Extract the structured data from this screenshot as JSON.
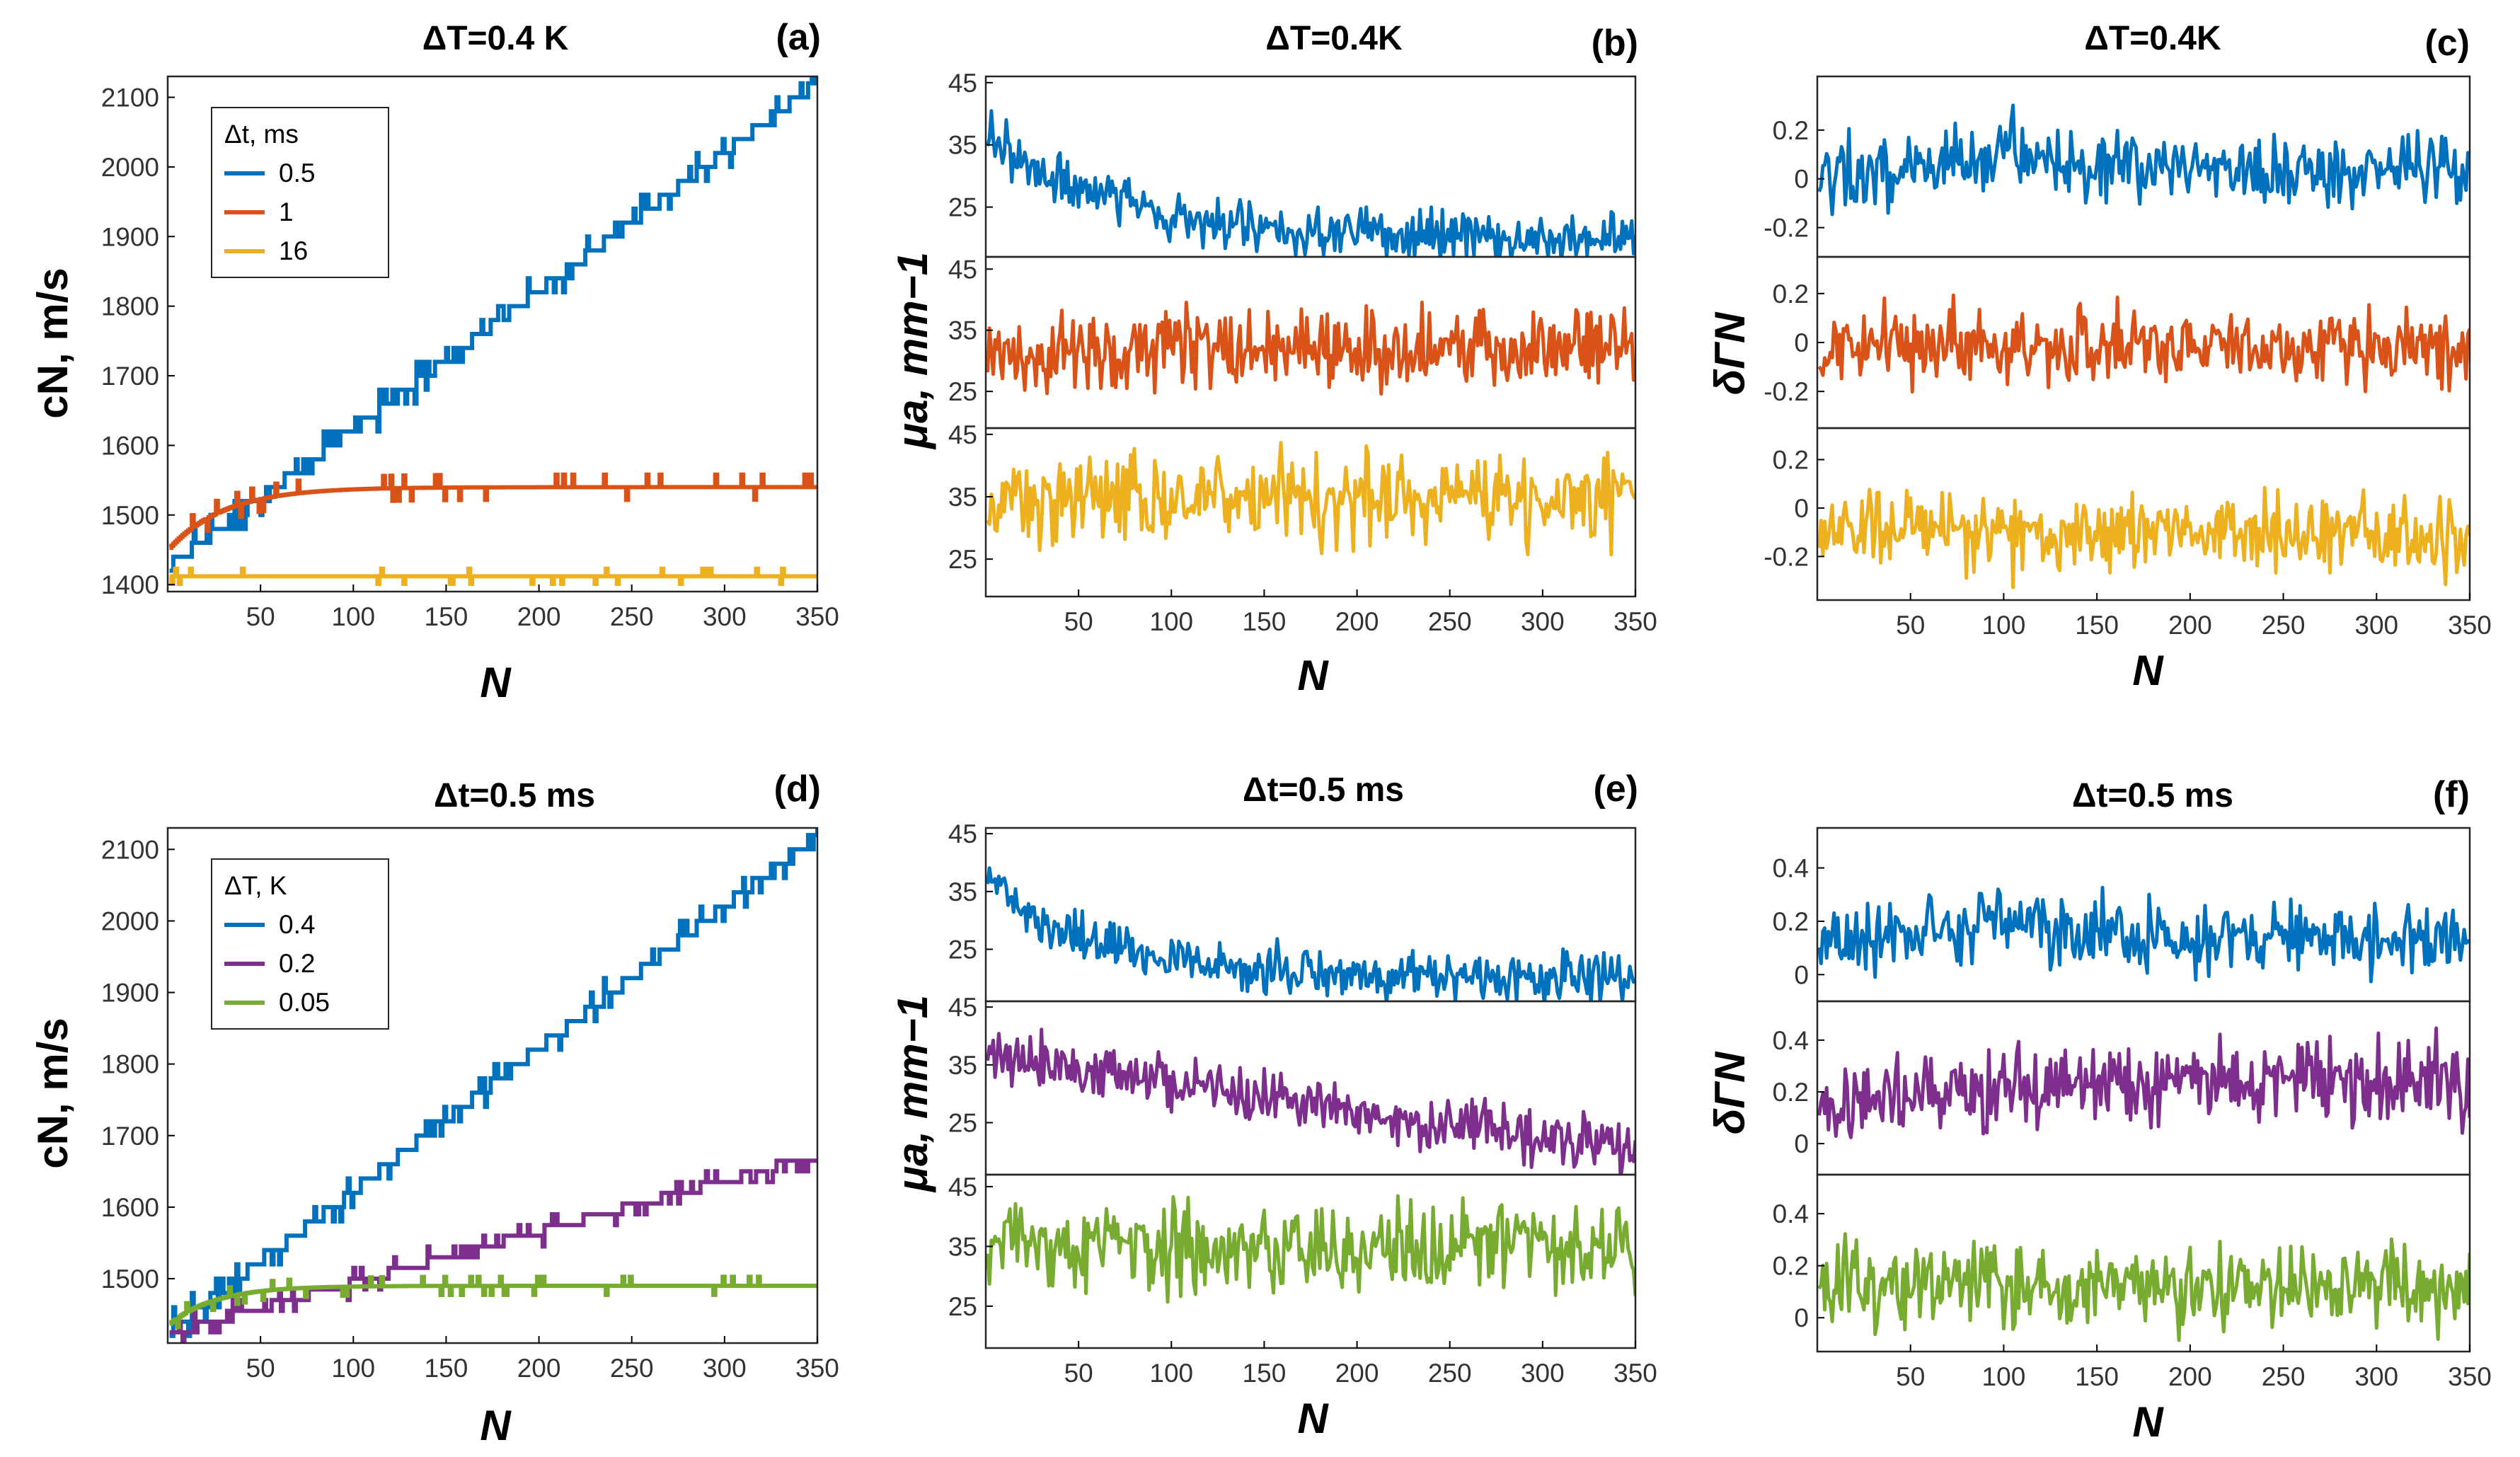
{
  "colors": {
    "blue": "#0072BD",
    "orange": "#D95319",
    "yellow": "#EDB120",
    "purple": "#7E2F8E",
    "green": "#77AC30"
  },
  "chart_data": [
    {
      "id": "a",
      "type": "line",
      "panel_label": "(a)",
      "title": "ΔT=0.4 K",
      "xlabel": "N",
      "ylabel": "cN, m/s",
      "xlim": [
        0,
        350
      ],
      "ylim": [
        1390,
        2130
      ],
      "xticks": [
        50,
        100,
        150,
        200,
        250,
        300,
        350
      ],
      "yticks": [
        1400,
        1500,
        1600,
        1700,
        1800,
        1900,
        2000,
        2100
      ],
      "legend": {
        "title": "Δt, ms",
        "position": "top-left"
      },
      "series": [
        {
          "name": "0.5",
          "color": "#0072BD",
          "shape": "ramp",
          "start": 1435,
          "end": 2130,
          "step": 20,
          "noise": 18
        },
        {
          "name": "1",
          "color": "#D95319",
          "shape": "saturating",
          "start": 1450,
          "end": 1540,
          "tau": 30,
          "noise": 10
        },
        {
          "name": "16",
          "color": "#EDB120",
          "shape": "flat",
          "start": 1412,
          "end": 1412,
          "noise": 6
        }
      ]
    },
    {
      "id": "b",
      "type": "line",
      "panel_label": "(b)",
      "title": "ΔT=0.4K",
      "xlabel": "N",
      "ylabel": "μa, mm−1",
      "xlim": [
        0,
        350
      ],
      "xticks": [
        50,
        100,
        150,
        200,
        250,
        300,
        350
      ],
      "subplots": [
        {
          "ylim": [
            17,
            46
          ],
          "yticks": [
            25,
            35,
            45
          ],
          "color": "#0072BD",
          "shape": "decay",
          "start": 38,
          "end": 20,
          "tau": 60,
          "noise": 2.6
        },
        {
          "ylim": [
            19,
            47
          ],
          "yticks": [
            25,
            35,
            45
          ],
          "color": "#D95319",
          "shape": "flat",
          "start": 32,
          "end": 32,
          "noise": 4
        },
        {
          "ylim": [
            19,
            46
          ],
          "yticks": [
            25,
            35,
            45
          ],
          "color": "#EDB120",
          "shape": "flat",
          "start": 35,
          "end": 35,
          "noise": 4.5
        }
      ]
    },
    {
      "id": "c",
      "type": "line",
      "panel_label": "(c)",
      "title": "ΔT=0.4K",
      "xlabel": "N",
      "ylabel": "δΓN",
      "xlim": [
        0,
        350
      ],
      "xticks": [
        50,
        100,
        150,
        200,
        250,
        300,
        350
      ],
      "subplots": [
        {
          "ylim": [
            -0.32,
            0.42
          ],
          "yticks": [
            -0.2,
            0,
            0.2
          ],
          "color": "#0072BD",
          "shape": "bump",
          "start": 0.03,
          "end": 0.03,
          "noise": 0.09
        },
        {
          "ylim": [
            -0.35,
            0.35
          ],
          "yticks": [
            -0.2,
            0,
            0.2
          ],
          "color": "#D95319",
          "shape": "flat",
          "start": -0.02,
          "end": -0.02,
          "noise": 0.1
        },
        {
          "ylim": [
            -0.38,
            0.33
          ],
          "yticks": [
            -0.2,
            0,
            0.2
          ],
          "color": "#EDB120",
          "shape": "flat",
          "start": -0.1,
          "end": -0.1,
          "noise": 0.1
        }
      ]
    },
    {
      "id": "d",
      "type": "line",
      "panel_label": "(d)",
      "title": "Δt=0.5 ms",
      "xlabel": "N",
      "ylabel": "cN, m/s",
      "xlim": [
        0,
        350
      ],
      "ylim": [
        1410,
        2130
      ],
      "xticks": [
        50,
        100,
        150,
        200,
        250,
        300,
        350
      ],
      "yticks": [
        1500,
        1600,
        1700,
        1800,
        1900,
        2000,
        2100
      ],
      "legend": {
        "title": "ΔT, K",
        "position": "top-left"
      },
      "series": [
        {
          "name": "0.4",
          "color": "#0072BD",
          "shape": "ramp",
          "start": 1435,
          "end": 2130,
          "step": 20,
          "noise": 18
        },
        {
          "name": "0.2",
          "color": "#7E2F8E",
          "shape": "ramp",
          "start": 1430,
          "end": 1680,
          "step": 15,
          "noise": 12
        },
        {
          "name": "0.05",
          "color": "#77AC30",
          "shape": "saturating",
          "start": 1435,
          "end": 1490,
          "tau": 25,
          "noise": 7
        }
      ]
    },
    {
      "id": "e",
      "type": "line",
      "panel_label": "(e)",
      "title": "Δt=0.5 ms",
      "xlabel": "N",
      "ylabel": "μa, mm−1",
      "xlim": [
        0,
        350
      ],
      "xticks": [
        50,
        100,
        150,
        200,
        250,
        300,
        350
      ],
      "subplots": [
        {
          "ylim": [
            16,
            46
          ],
          "yticks": [
            25,
            35,
            45
          ],
          "color": "#0072BD",
          "shape": "decay",
          "start": 38,
          "end": 20,
          "tau": 60,
          "noise": 2.6
        },
        {
          "ylim": [
            16,
            46
          ],
          "yticks": [
            25,
            35,
            45
          ],
          "color": "#7E2F8E",
          "shape": "linear",
          "start": 37,
          "end": 20,
          "noise": 3
        },
        {
          "ylim": [
            18,
            47
          ],
          "yticks": [
            25,
            35,
            45
          ],
          "color": "#77AC30",
          "shape": "flat",
          "start": 35,
          "end": 35,
          "noise": 4.5
        }
      ]
    },
    {
      "id": "f",
      "type": "line",
      "panel_label": "(f)",
      "title": "Δt=0.5 ms",
      "xlabel": "N",
      "ylabel": "δΓN",
      "xlim": [
        0,
        350
      ],
      "xticks": [
        50,
        100,
        150,
        200,
        250,
        300,
        350
      ],
      "subplots": [
        {
          "ylim": [
            -0.1,
            0.55
          ],
          "yticks": [
            0,
            0.2,
            0.4
          ],
          "color": "#0072BD",
          "shape": "bump",
          "start": 0.13,
          "end": 0.13,
          "noise": 0.08
        },
        {
          "ylim": [
            -0.12,
            0.55
          ],
          "yticks": [
            0,
            0.2,
            0.4
          ],
          "color": "#7E2F8E",
          "shape": "rise",
          "start": 0.13,
          "end": 0.25,
          "noise": 0.1
        },
        {
          "ylim": [
            -0.13,
            0.55
          ],
          "yticks": [
            0,
            0.2,
            0.4
          ],
          "color": "#77AC30",
          "shape": "flat",
          "start": 0.12,
          "end": 0.12,
          "noise": 0.1
        }
      ]
    }
  ]
}
